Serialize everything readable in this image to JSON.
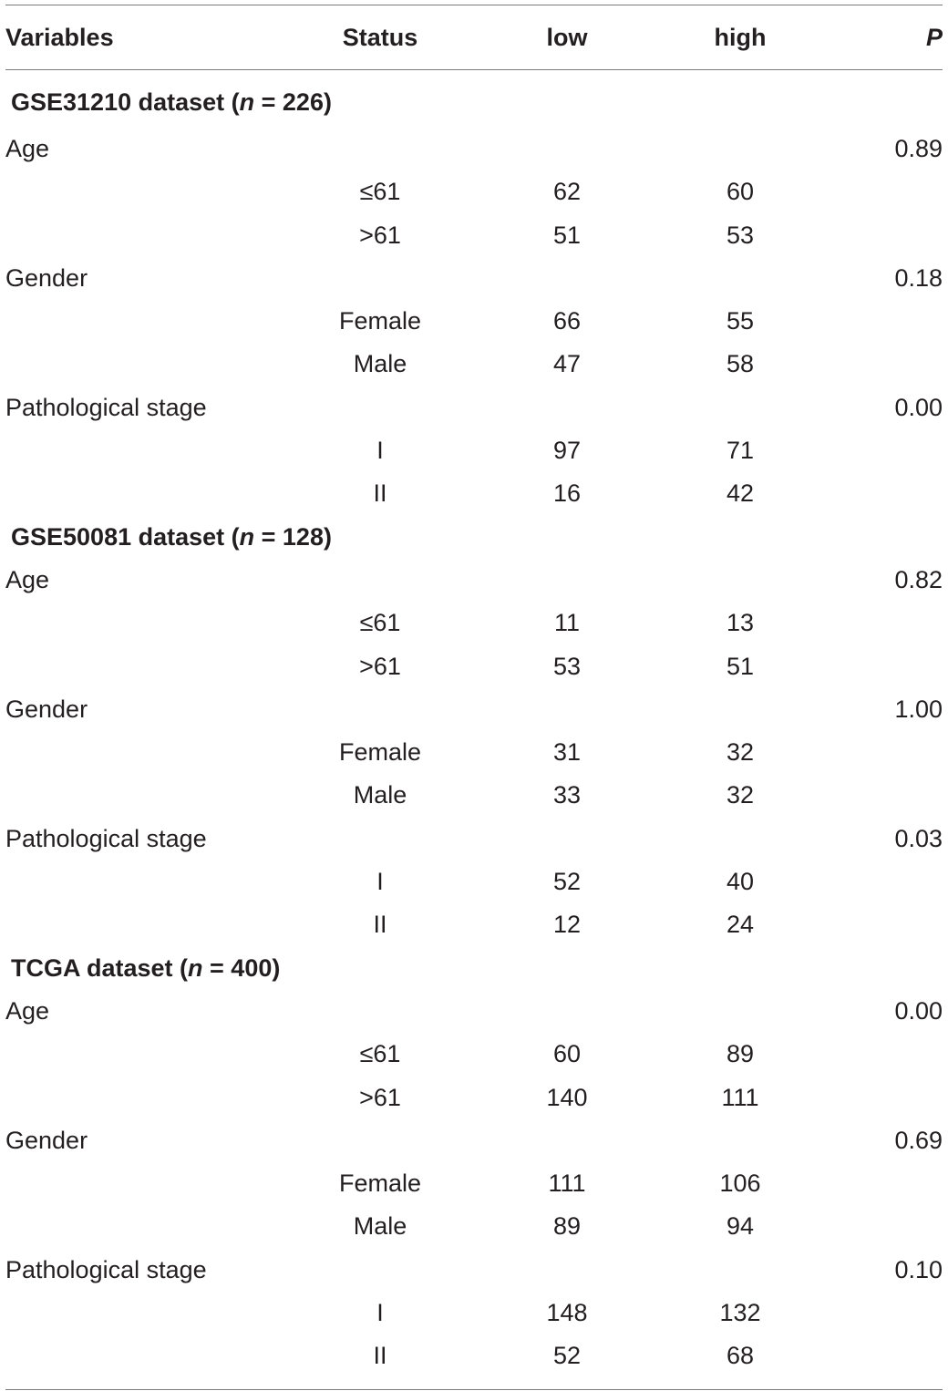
{
  "table": {
    "headers": {
      "variables": "Variables",
      "status": "Status",
      "low": "low",
      "high": "high",
      "p": "P"
    },
    "sections": [
      {
        "title_prefix": "GSE31210 dataset (",
        "title_n": "n",
        "title_suffix": " = 226)",
        "groups": [
          {
            "variable": "Age",
            "p": "0.89",
            "rows": [
              {
                "status": "≤61",
                "low": "62",
                "high": "60"
              },
              {
                "status": ">61",
                "low": "51",
                "high": "53"
              }
            ]
          },
          {
            "variable": "Gender",
            "p": "0.18",
            "rows": [
              {
                "status": "Female",
                "low": "66",
                "high": "55"
              },
              {
                "status": "Male",
                "low": "47",
                "high": "58"
              }
            ]
          },
          {
            "variable": "Pathological stage",
            "p": "0.00",
            "rows": [
              {
                "status": "I",
                "low": "97",
                "high": "71"
              },
              {
                "status": "II",
                "low": "16",
                "high": "42"
              }
            ]
          }
        ]
      },
      {
        "title_prefix": "GSE50081 dataset (",
        "title_n": "n",
        "title_suffix": " = 128)",
        "groups": [
          {
            "variable": "Age",
            "p": "0.82",
            "rows": [
              {
                "status": "≤61",
                "low": "11",
                "high": "13"
              },
              {
                "status": ">61",
                "low": "53",
                "high": "51"
              }
            ]
          },
          {
            "variable": "Gender",
            "p": "1.00",
            "rows": [
              {
                "status": "Female",
                "low": "31",
                "high": "32"
              },
              {
                "status": "Male",
                "low": "33",
                "high": "32"
              }
            ]
          },
          {
            "variable": "Pathological stage",
            "p": "0.03",
            "rows": [
              {
                "status": "I",
                "low": "52",
                "high": "40"
              },
              {
                "status": "II",
                "low": "12",
                "high": "24"
              }
            ]
          }
        ]
      },
      {
        "title_prefix": "TCGA dataset (",
        "title_n": "n",
        "title_suffix": " = 400)",
        "groups": [
          {
            "variable": "Age",
            "p": "0.00",
            "rows": [
              {
                "status": "≤61",
                "low": "60",
                "high": "89"
              },
              {
                "status": ">61",
                "low": "140",
                "high": "111"
              }
            ]
          },
          {
            "variable": "Gender",
            "p": "0.69",
            "rows": [
              {
                "status": "Female",
                "low": "111",
                "high": "106"
              },
              {
                "status": "Male",
                "low": "89",
                "high": "94"
              }
            ]
          },
          {
            "variable": "Pathological stage",
            "p": "0.10",
            "rows": [
              {
                "status": "I",
                "low": "148",
                "high": "132"
              },
              {
                "status": "II",
                "low": "52",
                "high": "68"
              }
            ]
          }
        ]
      }
    ]
  }
}
